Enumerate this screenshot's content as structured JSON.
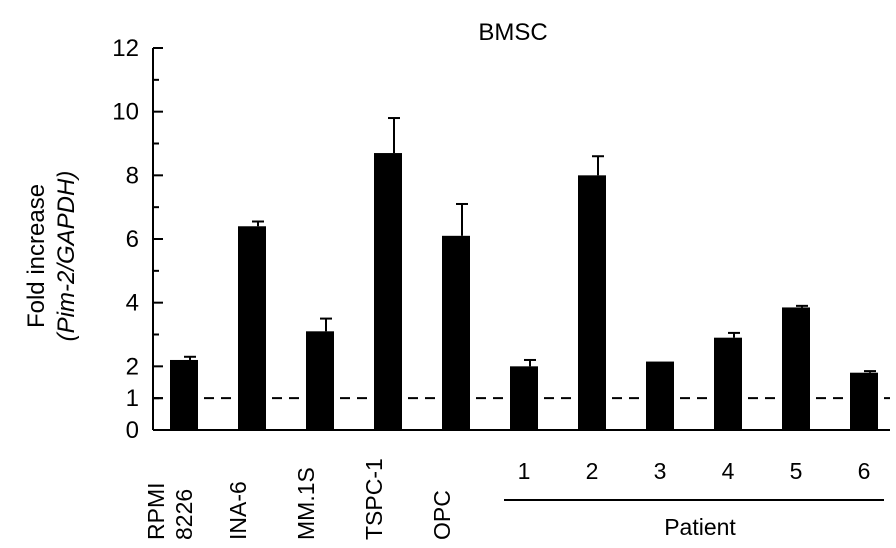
{
  "chart_data": {
    "type": "bar",
    "title": "BMSC",
    "ylabel_line1": "Fold increase",
    "ylabel_line2": "(Pim-2/GAPDH)",
    "xlabel": "",
    "ylim": [
      0,
      12
    ],
    "yticks": [
      "0",
      "1",
      "2",
      "4",
      "6",
      "8",
      "10",
      "12"
    ],
    "ytick_values": [
      0,
      1,
      2,
      4,
      6,
      8,
      10,
      12
    ],
    "reference_line": 1,
    "categories": [
      {
        "label": [
          "RPMI",
          "8226"
        ],
        "value": 2.2,
        "error": 0.1
      },
      {
        "label": [
          "INA-6"
        ],
        "value": 6.4,
        "error": 0.15
      },
      {
        "label": [
          "MM.1S"
        ],
        "value": 3.1,
        "error": 0.4
      },
      {
        "label": [
          "TSPC-1"
        ],
        "value": 8.7,
        "error": 1.1
      },
      {
        "label": [
          "OPC"
        ],
        "value": 6.1,
        "error": 1.0
      },
      {
        "label": [
          "1"
        ],
        "value": 2.0,
        "error": 0.2
      },
      {
        "label": [
          "2"
        ],
        "value": 8.0,
        "error": 0.6
      },
      {
        "label": [
          "3"
        ],
        "value": 2.15,
        "error": 0.0
      },
      {
        "label": [
          "4"
        ],
        "value": 2.9,
        "error": 0.15
      },
      {
        "label": [
          "5"
        ],
        "value": 3.85,
        "error": 0.05
      },
      {
        "label": [
          "6"
        ],
        "value": 1.8,
        "error": 0.05
      }
    ],
    "group_label": "Patient",
    "bar_color": "#000000"
  }
}
